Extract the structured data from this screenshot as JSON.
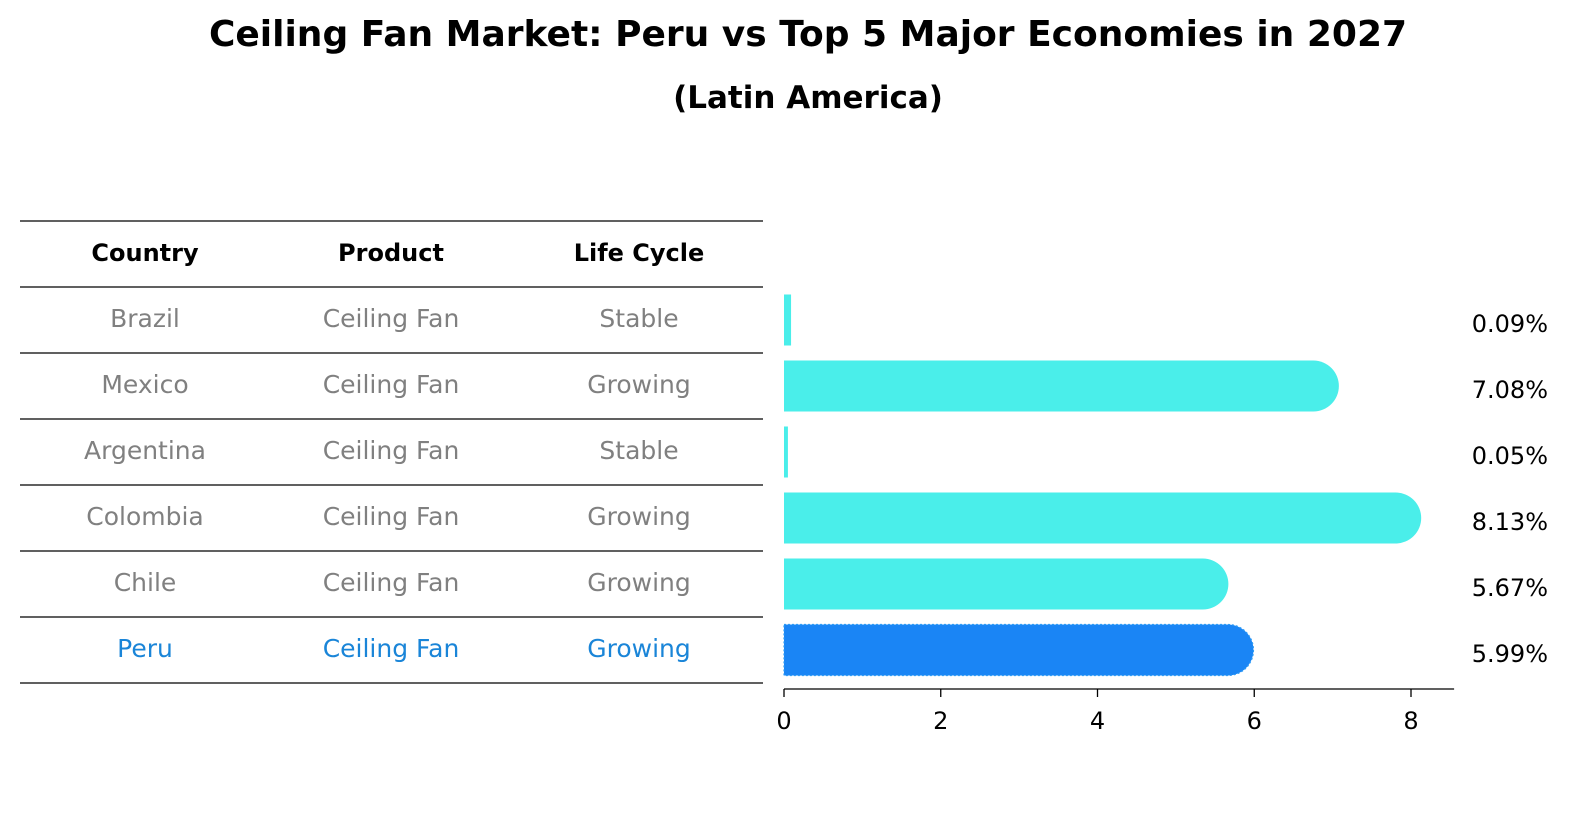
{
  "title": "Ceiling Fan Market: Peru vs Top 5 Major Economies in 2027",
  "subtitle": "(Latin America)",
  "table": {
    "headers": [
      "Country",
      "Product",
      "Life Cycle"
    ]
  },
  "chart_data": {
    "type": "bar",
    "orientation": "horizontal",
    "title": "Ceiling Fan Market: Peru vs Top 5 Major Economies in 2027",
    "subtitle": "(Latin America)",
    "categories": [
      "Brazil",
      "Mexico",
      "Argentina",
      "Colombia",
      "Chile",
      "Peru"
    ],
    "rows": [
      {
        "country": "Brazil",
        "product": "Ceiling Fan",
        "life_cycle": "Stable",
        "value": 0.09,
        "label": "0.09%",
        "highlight": false
      },
      {
        "country": "Mexico",
        "product": "Ceiling Fan",
        "life_cycle": "Growing",
        "value": 7.08,
        "label": "7.08%",
        "highlight": false
      },
      {
        "country": "Argentina",
        "product": "Ceiling Fan",
        "life_cycle": "Stable",
        "value": 0.05,
        "label": "0.05%",
        "highlight": false
      },
      {
        "country": "Colombia",
        "product": "Ceiling Fan",
        "life_cycle": "Growing",
        "value": 8.13,
        "label": "8.13%",
        "highlight": false
      },
      {
        "country": "Chile",
        "product": "Ceiling Fan",
        "life_cycle": "Growing",
        "value": 5.67,
        "label": "5.67%",
        "highlight": false
      },
      {
        "country": "Peru",
        "product": "Ceiling Fan",
        "life_cycle": "Growing",
        "value": 5.99,
        "label": "5.99%",
        "highlight": true
      }
    ],
    "xticks": [
      0,
      2,
      4,
      6,
      8
    ],
    "xlim": [
      0,
      8.55
    ],
    "grid": false,
    "colors": {
      "bar": "#4aeeea",
      "highlight_bar": "#1a85f5",
      "text": "#808080",
      "highlight_text": "#1a85d8"
    }
  }
}
